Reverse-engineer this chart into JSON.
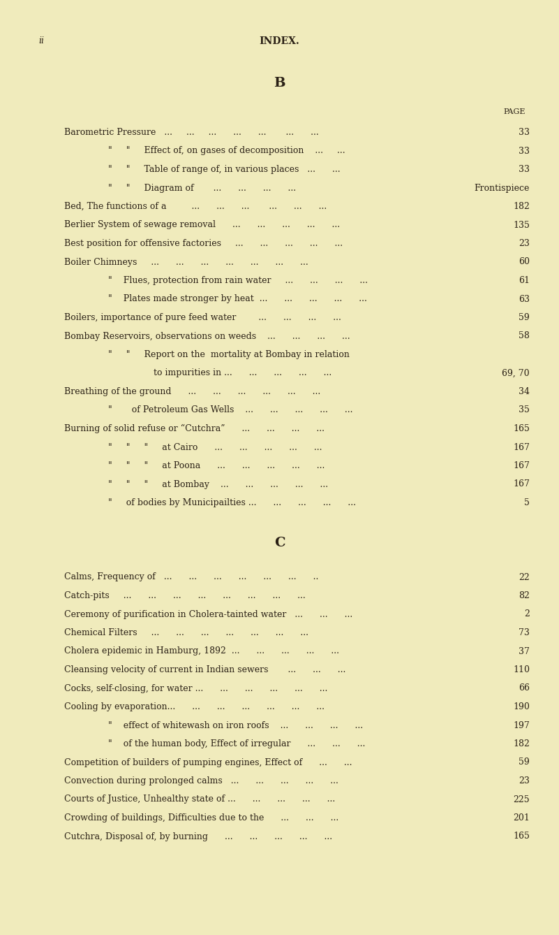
{
  "bg_color": "#f0ebbc",
  "text_color": "#2a2015",
  "page_header_left": "ii",
  "page_header_center": "INDEX.",
  "section_B": "B",
  "section_C": "C",
  "page_label": "PAGE",
  "fig_width": 8.01,
  "fig_height": 13.38,
  "dpi": 100,
  "entries_B": [
    {
      "indent": 0,
      "text": "Barometric Pressure   ...     ...     ...      ...      ...       ...      ...",
      "page": "33"
    },
    {
      "indent": 1,
      "text": "\"     \"     Effect of, on gases of decomposition    ...     ...",
      "page": "33"
    },
    {
      "indent": 1,
      "text": "\"     \"     Table of range of, in various places   ...      ...",
      "page": "33"
    },
    {
      "indent": 1,
      "text": "\"     \"     Diagram of       ...      ...      ...      ...",
      "page": "Frontispiece"
    },
    {
      "indent": 0,
      "text": "Bed, The functions of a         ...      ...      ...       ...      ...      ...",
      "page": "182"
    },
    {
      "indent": 0,
      "text": "Berlier System of sewage removal      ...      ...      ...      ...      ...",
      "page": "135"
    },
    {
      "indent": 0,
      "text": "Best position for offensive factories     ...      ...      ...      ...      ...",
      "page": "23"
    },
    {
      "indent": 0,
      "text": "Boiler Chimneys     ...      ...      ...      ...      ...      ...      ...",
      "page": "60"
    },
    {
      "indent": 1,
      "text": "\"    Flues, protection from rain water     ...      ...      ...      ...",
      "page": "61"
    },
    {
      "indent": 1,
      "text": "\"    Plates made stronger by heat  ...      ...      ...      ...      ...",
      "page": "63"
    },
    {
      "indent": 0,
      "text": "Boilers, importance of pure feed water        ...      ...      ...      ...",
      "page": "59"
    },
    {
      "indent": 0,
      "text": "Bombay Reservoirs, observations on weeds    ...      ...      ...      ...",
      "page": "58"
    },
    {
      "indent": 1,
      "text": "\"     \"     Report on the  mortality at Bombay in relation",
      "page": ""
    },
    {
      "indent": 2,
      "text": "to impurities in ...      ...      ...      ...      ...",
      "page": "69, 70"
    },
    {
      "indent": 0,
      "text": "Breathing of the ground      ...      ...      ...      ...      ...      ...",
      "page": "34"
    },
    {
      "indent": 1,
      "text": "\"       of Petroleum Gas Wells    ...      ...      ...      ...      ...",
      "page": "35"
    },
    {
      "indent": 0,
      "text": "Burning of solid refuse or “Cutchra”      ...      ...      ...      ...",
      "page": "165"
    },
    {
      "indent": 1,
      "text": "\"     \"     \"     at Cairo      ...      ...      ...      ...      ...",
      "page": "167"
    },
    {
      "indent": 1,
      "text": "\"     \"     \"     at Poona      ...      ...      ...      ...      ...",
      "page": "167"
    },
    {
      "indent": 1,
      "text": "\"     \"     \"     at Bombay    ...      ...      ...      ...      ...",
      "page": "167"
    },
    {
      "indent": 1,
      "text": "\"     of bodies by Municipailties ...      ...      ...      ...      ...",
      "page": "5"
    }
  ],
  "entries_C": [
    {
      "indent": 0,
      "text": "Calms, Frequency of   ...      ...      ...      ...      ...      ...      ..",
      "page": "22"
    },
    {
      "indent": 0,
      "text": "Catch-pits     ...      ...      ...      ...      ...      ...      ...      ...",
      "page": "82"
    },
    {
      "indent": 0,
      "text": "Ceremony of purification in Cholera-tainted water   ...      ...      ...",
      "page": "2"
    },
    {
      "indent": 0,
      "text": "Chemical Filters     ...      ...      ...      ...      ...      ...      ...",
      "page": "73"
    },
    {
      "indent": 0,
      "text": "Cholera epidemic in Hamburg, 1892  ...      ...      ...      ...      ...",
      "page": "37"
    },
    {
      "indent": 0,
      "text": "Cleansing velocity of current in Indian sewers       ...      ...      ...",
      "page": "110"
    },
    {
      "indent": 0,
      "text": "Cocks, self-closing, for water ...      ...      ...      ...      ...      ...",
      "page": "66"
    },
    {
      "indent": 0,
      "text": "Cooling by evaporation...      ...      ...      ...      ...      ...      ...",
      "page": "190"
    },
    {
      "indent": 1,
      "text": "\"    effect of whitewash on iron roofs    ...      ...      ...      ...",
      "page": "197"
    },
    {
      "indent": 1,
      "text": "\"    of the human body, Effect of irregular      ...      ...      ...",
      "page": "182"
    },
    {
      "indent": 0,
      "text": "Competition of builders of pumping engines, Effect of      ...      ...",
      "page": "59"
    },
    {
      "indent": 0,
      "text": "Convection during prolonged calms   ...      ...      ...      ...      ...",
      "page": "23"
    },
    {
      "indent": 0,
      "text": "Courts of Justice, Unhealthy state of ...      ...      ...      ...      ...",
      "page": "225"
    },
    {
      "indent": 0,
      "text": "Crowding of buildings, Difficulties due to the      ...      ...      ...",
      "page": "201"
    },
    {
      "indent": 0,
      "text": "Cutchra, Disposal of, by burning      ...      ...      ...      ...      ...",
      "page": "165"
    }
  ]
}
